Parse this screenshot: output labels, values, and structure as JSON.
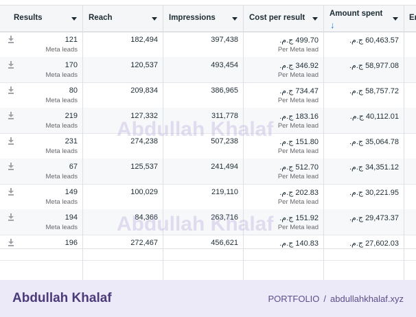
{
  "header": {
    "columns": [
      {
        "label": "Results",
        "caret": true
      },
      {
        "label": "Reach",
        "caret": true
      },
      {
        "label": "Impressions",
        "caret": true
      },
      {
        "label": "Cost per result",
        "caret": true
      },
      {
        "label": "Amount spent",
        "caret": true,
        "sort": "↓"
      },
      {
        "label": "En",
        "caret": false
      }
    ]
  },
  "rows": [
    {
      "results": "121",
      "results_sub": "Meta leads",
      "reach": "182,494",
      "impressions": "397,438",
      "cpr": "499.70 ج.م.",
      "cpr_sub": "Per Meta lead",
      "spent": "60,463.57 ج.م."
    },
    {
      "results": "170",
      "results_sub": "Meta leads",
      "reach": "120,537",
      "impressions": "493,454",
      "cpr": "346.92 ج.م.",
      "cpr_sub": "Per Meta lead",
      "spent": "58,977.08 ج.م."
    },
    {
      "results": "80",
      "results_sub": "Meta leads",
      "reach": "209,834",
      "impressions": "386,965",
      "cpr": "734.47 ج.م.",
      "cpr_sub": "Per Meta lead",
      "spent": "58,757.72 ج.م."
    },
    {
      "results": "219",
      "results_sub": "Meta leads",
      "reach": "127,332",
      "impressions": "311,778",
      "cpr": "183.16 ج.م.",
      "cpr_sub": "Per Meta lead",
      "spent": "40,112.01 ج.م."
    },
    {
      "results": "231",
      "results_sub": "Meta leads",
      "reach": "274,238",
      "impressions": "507,238",
      "cpr": "151.80 ج.م.",
      "cpr_sub": "Per Meta lead",
      "spent": "35,064.78 ج.م."
    },
    {
      "results": "67",
      "results_sub": "Meta leads",
      "reach": "125,537",
      "impressions": "241,494",
      "cpr": "512.70 ج.م.",
      "cpr_sub": "Per Meta lead",
      "spent": "34,351.12 ج.م."
    },
    {
      "results": "149",
      "results_sub": "Meta leads",
      "reach": "100,029",
      "impressions": "219,110",
      "cpr": "202.83 ج.م.",
      "cpr_sub": "Per Meta lead",
      "spent": "30,221.95 ج.م."
    },
    {
      "results": "194",
      "results_sub": "Meta leads",
      "reach": "84,366",
      "impressions": "263,716",
      "cpr": "151.92 ج.م.",
      "cpr_sub": "Per Meta lead",
      "spent": "29,473.37 ج.م."
    },
    {
      "results": "196",
      "results_sub": "",
      "reach": "272,467",
      "impressions": "456,621",
      "cpr": "140.83 ج.م.",
      "cpr_sub": "",
      "spent": "27,602.03 ج.م."
    }
  ],
  "watermark": "Abdullah Khalaf",
  "footer": {
    "brand": "Abdullah Khalaf",
    "portfolio": "PORTFOLIO",
    "separator": "/",
    "site": "abdullahkhalaf.xyz"
  },
  "icons": {
    "row_action": "download-icon",
    "sort": "arrow-down-icon",
    "caret": "caret-down-icon"
  },
  "colors": {
    "accent": "#1877f2",
    "footer_bg": "#ece9f8",
    "brand": "#4b3b7a"
  }
}
